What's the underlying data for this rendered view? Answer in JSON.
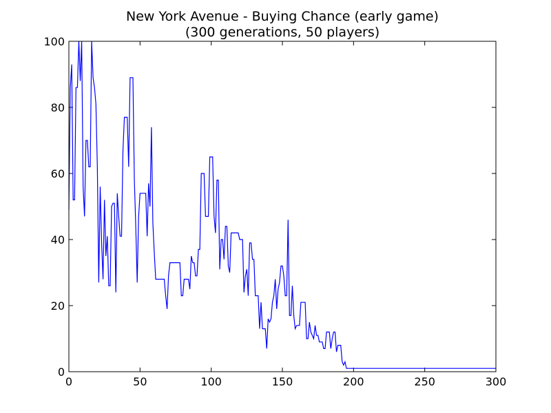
{
  "chart_data": {
    "type": "line",
    "title": "New York Avenue - Buying Chance (early game)",
    "subtitle": "(300 generations, 50 players)",
    "xlabel": "",
    "ylabel": "",
    "xlim": [
      0,
      300
    ],
    "ylim": [
      0,
      100
    ],
    "x_ticks": [
      0,
      50,
      100,
      150,
      200,
      250,
      300
    ],
    "y_ticks": [
      0,
      20,
      40,
      60,
      80,
      100
    ],
    "grid": false,
    "series": [
      {
        "color": "#0000ff",
        "x": [
          0,
          1,
          2,
          3,
          4,
          5,
          6,
          7,
          8,
          9,
          10,
          11,
          12,
          13,
          14,
          15,
          16,
          17,
          18,
          19,
          20,
          21,
          22,
          23,
          24,
          25,
          26,
          27,
          28,
          29,
          30,
          31,
          32,
          33,
          34,
          35,
          36,
          37,
          38,
          39,
          40,
          41,
          42,
          43,
          44,
          45,
          46,
          47,
          48,
          49,
          50,
          51,
          52,
          53,
          54,
          55,
          56,
          57,
          58,
          59,
          60,
          61,
          62,
          63,
          64,
          65,
          66,
          67,
          68,
          69,
          70,
          71,
          72,
          73,
          74,
          75,
          76,
          77,
          78,
          79,
          80,
          81,
          82,
          83,
          84,
          85,
          86,
          87,
          88,
          89,
          90,
          91,
          92,
          93,
          94,
          95,
          96,
          97,
          98,
          99,
          100,
          101,
          102,
          103,
          104,
          105,
          106,
          107,
          108,
          109,
          110,
          111,
          112,
          113,
          114,
          115,
          116,
          117,
          118,
          119,
          120,
          121,
          122,
          123,
          124,
          125,
          126,
          127,
          128,
          129,
          130,
          131,
          132,
          133,
          134,
          135,
          136,
          137,
          138,
          139,
          140,
          141,
          142,
          143,
          144,
          145,
          146,
          147,
          148,
          149,
          150,
          151,
          152,
          153,
          154,
          155,
          156,
          157,
          158,
          159,
          160,
          161,
          162,
          163,
          164,
          165,
          166,
          167,
          168,
          169,
          170,
          171,
          172,
          173,
          174,
          175,
          176,
          177,
          178,
          179,
          180,
          181,
          182,
          183,
          184,
          185,
          186,
          187,
          188,
          189,
          190,
          191,
          192,
          193,
          194,
          195,
          196,
          197,
          198,
          199,
          200,
          210,
          220,
          230,
          240,
          250,
          260,
          270,
          280,
          290,
          300
        ],
        "y": [
          49,
          86,
          93,
          52,
          52,
          86,
          86,
          100,
          88,
          100,
          56,
          47,
          70,
          70,
          62,
          62,
          100,
          89,
          86,
          81,
          62,
          27,
          56,
          39,
          28,
          52,
          35,
          41,
          26,
          26,
          50,
          51,
          51,
          24,
          54,
          47,
          41,
          41,
          67,
          77,
          77,
          77,
          62,
          89,
          89,
          89,
          58,
          44,
          27,
          47,
          54,
          54,
          54,
          54,
          54,
          41,
          57,
          50,
          74,
          45,
          36,
          28,
          28,
          28,
          28,
          28,
          28,
          28,
          23,
          19,
          29,
          33,
          33,
          33,
          33,
          33,
          33,
          33,
          33,
          23,
          23,
          28,
          28,
          28,
          28,
          25,
          35,
          33,
          33,
          29,
          29,
          37,
          37,
          60,
          60,
          60,
          47,
          47,
          47,
          65,
          65,
          65,
          47,
          42,
          58,
          58,
          31,
          40,
          40,
          34,
          44,
          44,
          32,
          30,
          42,
          42,
          42,
          42,
          42,
          42,
          40,
          40,
          40,
          24,
          29,
          31,
          23,
          39,
          39,
          34,
          34,
          23,
          23,
          23,
          13,
          21,
          13,
          13,
          13,
          7,
          16,
          15,
          16,
          21,
          23,
          28,
          19,
          25,
          27,
          32,
          32,
          29,
          23,
          23,
          46,
          17,
          17,
          26,
          17,
          13,
          14,
          14,
          14,
          21,
          21,
          21,
          21,
          10,
          10,
          15,
          12,
          11,
          10,
          14,
          11,
          11,
          9,
          9,
          9,
          7,
          7,
          12,
          12,
          12,
          7,
          10,
          12,
          12,
          6,
          8,
          8,
          8,
          3,
          2,
          3,
          1,
          1,
          1,
          1,
          1,
          1,
          1,
          1,
          1,
          1,
          1,
          1,
          1,
          1,
          1,
          1
        ]
      }
    ]
  }
}
